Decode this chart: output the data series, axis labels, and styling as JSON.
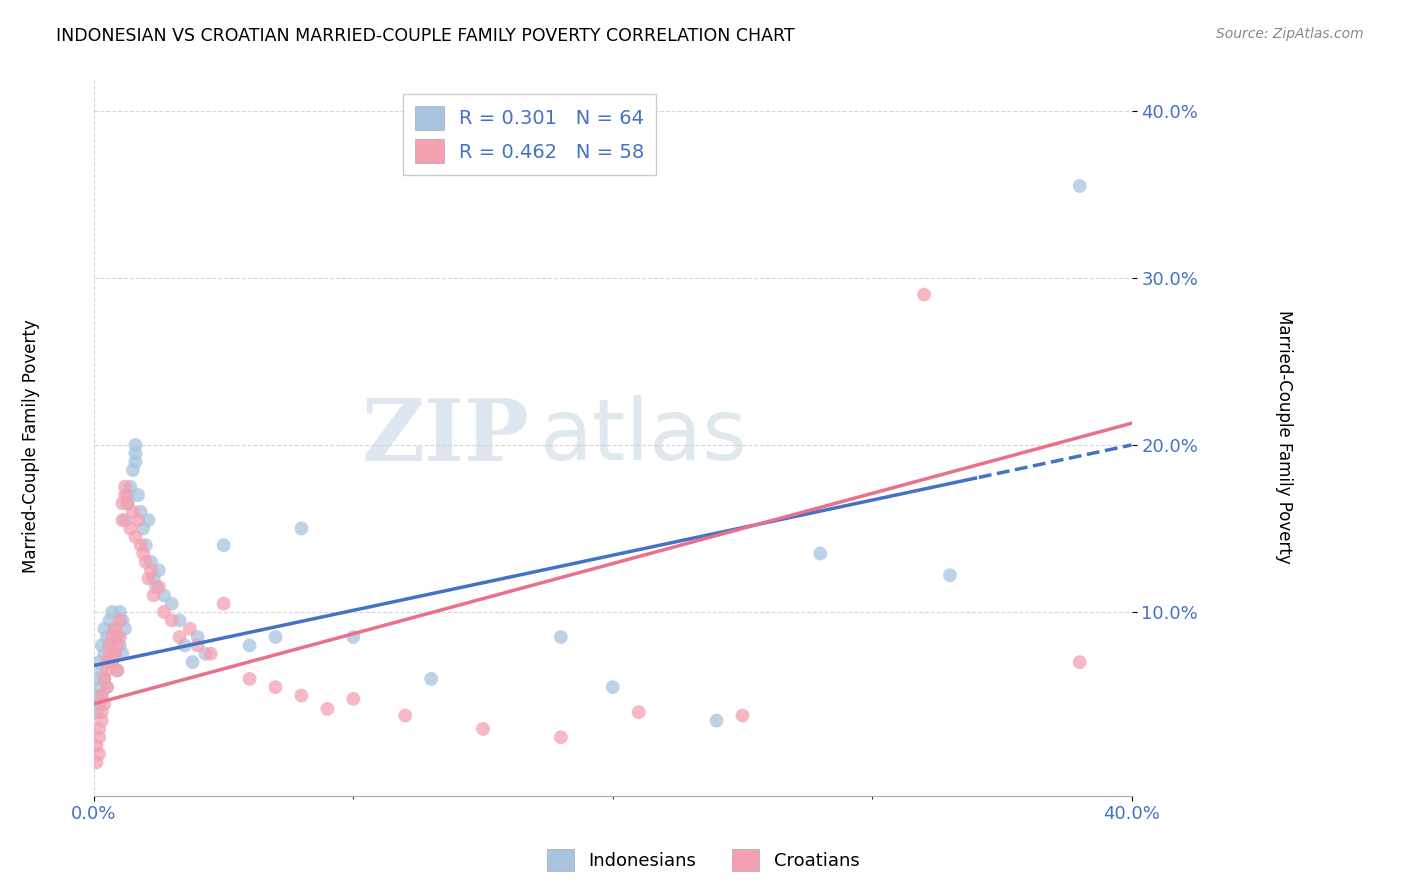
{
  "title": "INDONESIAN VS CROATIAN MARRIED-COUPLE FAMILY POVERTY CORRELATION CHART",
  "source": "Source: ZipAtlas.com",
  "ylabel": "Married-Couple Family Poverty",
  "xlim": [
    0.0,
    0.4
  ],
  "ylim": [
    -0.01,
    0.42
  ],
  "yticks": [
    0.1,
    0.2,
    0.3,
    0.4
  ],
  "xticks": [
    0.0,
    0.1,
    0.2,
    0.3,
    0.4
  ],
  "watermark_zip": "ZIP",
  "watermark_atlas": "atlas",
  "indonesian_color": "#a8c4e0",
  "croatian_color": "#f4a0b0",
  "indonesian_line_color": "#4472c4",
  "croatian_line_color": "#e8708a",
  "indonesian_R": 0.301,
  "indonesian_N": 64,
  "croatian_R": 0.462,
  "croatian_N": 58,
  "indonesian_intercept": 0.068,
  "indonesian_slope": 0.33,
  "croatian_intercept": 0.045,
  "croatian_slope": 0.42,
  "indonesian_scatter": [
    [
      0.001,
      0.05
    ],
    [
      0.001,
      0.06
    ],
    [
      0.001,
      0.04
    ],
    [
      0.002,
      0.07
    ],
    [
      0.002,
      0.055
    ],
    [
      0.002,
      0.045
    ],
    [
      0.003,
      0.08
    ],
    [
      0.003,
      0.065
    ],
    [
      0.003,
      0.05
    ],
    [
      0.004,
      0.09
    ],
    [
      0.004,
      0.075
    ],
    [
      0.004,
      0.06
    ],
    [
      0.005,
      0.085
    ],
    [
      0.005,
      0.07
    ],
    [
      0.005,
      0.055
    ],
    [
      0.006,
      0.095
    ],
    [
      0.006,
      0.08
    ],
    [
      0.007,
      0.1
    ],
    [
      0.007,
      0.07
    ],
    [
      0.008,
      0.09
    ],
    [
      0.008,
      0.075
    ],
    [
      0.009,
      0.085
    ],
    [
      0.009,
      0.065
    ],
    [
      0.01,
      0.1
    ],
    [
      0.01,
      0.08
    ],
    [
      0.011,
      0.095
    ],
    [
      0.011,
      0.075
    ],
    [
      0.012,
      0.09
    ],
    [
      0.012,
      0.155
    ],
    [
      0.013,
      0.17
    ],
    [
      0.013,
      0.165
    ],
    [
      0.014,
      0.175
    ],
    [
      0.015,
      0.185
    ],
    [
      0.016,
      0.195
    ],
    [
      0.016,
      0.19
    ],
    [
      0.016,
      0.2
    ],
    [
      0.017,
      0.17
    ],
    [
      0.018,
      0.16
    ],
    [
      0.019,
      0.15
    ],
    [
      0.02,
      0.14
    ],
    [
      0.021,
      0.155
    ],
    [
      0.022,
      0.13
    ],
    [
      0.023,
      0.12
    ],
    [
      0.024,
      0.115
    ],
    [
      0.025,
      0.125
    ],
    [
      0.027,
      0.11
    ],
    [
      0.03,
      0.105
    ],
    [
      0.033,
      0.095
    ],
    [
      0.035,
      0.08
    ],
    [
      0.038,
      0.07
    ],
    [
      0.04,
      0.085
    ],
    [
      0.043,
      0.075
    ],
    [
      0.05,
      0.14
    ],
    [
      0.06,
      0.08
    ],
    [
      0.07,
      0.085
    ],
    [
      0.08,
      0.15
    ],
    [
      0.1,
      0.085
    ],
    [
      0.13,
      0.06
    ],
    [
      0.18,
      0.085
    ],
    [
      0.2,
      0.055
    ],
    [
      0.24,
      0.035
    ],
    [
      0.28,
      0.135
    ],
    [
      0.33,
      0.122
    ],
    [
      0.38,
      0.355
    ]
  ],
  "croatian_scatter": [
    [
      0.001,
      0.01
    ],
    [
      0.001,
      0.02
    ],
    [
      0.002,
      0.015
    ],
    [
      0.002,
      0.03
    ],
    [
      0.002,
      0.025
    ],
    [
      0.003,
      0.04
    ],
    [
      0.003,
      0.035
    ],
    [
      0.003,
      0.05
    ],
    [
      0.004,
      0.045
    ],
    [
      0.004,
      0.06
    ],
    [
      0.005,
      0.055
    ],
    [
      0.005,
      0.07
    ],
    [
      0.005,
      0.065
    ],
    [
      0.006,
      0.075
    ],
    [
      0.006,
      0.08
    ],
    [
      0.007,
      0.085
    ],
    [
      0.007,
      0.07
    ],
    [
      0.008,
      0.09
    ],
    [
      0.008,
      0.075
    ],
    [
      0.009,
      0.08
    ],
    [
      0.009,
      0.065
    ],
    [
      0.01,
      0.085
    ],
    [
      0.01,
      0.095
    ],
    [
      0.011,
      0.155
    ],
    [
      0.011,
      0.165
    ],
    [
      0.012,
      0.17
    ],
    [
      0.012,
      0.175
    ],
    [
      0.013,
      0.165
    ],
    [
      0.014,
      0.15
    ],
    [
      0.015,
      0.16
    ],
    [
      0.016,
      0.145
    ],
    [
      0.017,
      0.155
    ],
    [
      0.018,
      0.14
    ],
    [
      0.019,
      0.135
    ],
    [
      0.02,
      0.13
    ],
    [
      0.021,
      0.12
    ],
    [
      0.022,
      0.125
    ],
    [
      0.023,
      0.11
    ],
    [
      0.025,
      0.115
    ],
    [
      0.027,
      0.1
    ],
    [
      0.03,
      0.095
    ],
    [
      0.033,
      0.085
    ],
    [
      0.037,
      0.09
    ],
    [
      0.04,
      0.08
    ],
    [
      0.045,
      0.075
    ],
    [
      0.05,
      0.105
    ],
    [
      0.06,
      0.06
    ],
    [
      0.07,
      0.055
    ],
    [
      0.08,
      0.05
    ],
    [
      0.09,
      0.042
    ],
    [
      0.1,
      0.048
    ],
    [
      0.12,
      0.038
    ],
    [
      0.15,
      0.03
    ],
    [
      0.18,
      0.025
    ],
    [
      0.21,
      0.04
    ],
    [
      0.25,
      0.038
    ],
    [
      0.32,
      0.29
    ],
    [
      0.38,
      0.07
    ]
  ]
}
